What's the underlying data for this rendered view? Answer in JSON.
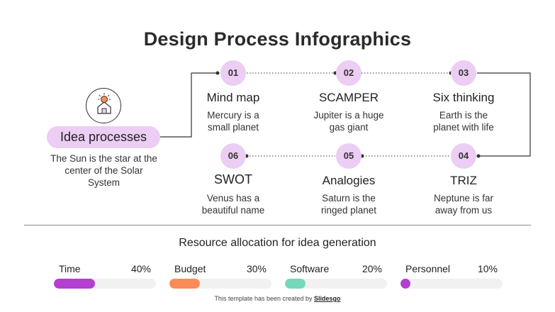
{
  "title": "Design Process Infographics",
  "hub": {
    "label": "Idea processes",
    "description": "The Sun is the star at the center of the Solar System",
    "icon": "idea-house-icon"
  },
  "steps": [
    {
      "number": "01",
      "name": "Mind map",
      "description": "Mercury is a small planet"
    },
    {
      "number": "02",
      "name": "SCAMPER",
      "description": "Jupiter is a huge gas giant"
    },
    {
      "number": "03",
      "name": "Six thinking",
      "description": "Earth is the planet with life"
    },
    {
      "number": "04",
      "name": "TRIZ",
      "description": "Neptune is far away from us"
    },
    {
      "number": "05",
      "name": "Analogies",
      "description": "Saturn is the ringed planet"
    },
    {
      "number": "06",
      "name": "SWOT",
      "description": "Venus has a beautiful name"
    }
  ],
  "resources": {
    "title": "Resource allocation for idea generation",
    "items": [
      {
        "label": "Time",
        "percent_label": "40%",
        "value": 0.4,
        "color": "#b43fd1"
      },
      {
        "label": "Budget",
        "percent_label": "30%",
        "value": 0.3,
        "color": "#fb8b57"
      },
      {
        "label": "Software",
        "percent_label": "20%",
        "value": 0.2,
        "color": "#76d8bb"
      },
      {
        "label": "Personnel",
        "percent_label": "10%",
        "value": 0.1,
        "color": "#b43fd1"
      }
    ]
  },
  "footer": {
    "text": "This template has been created by",
    "brand": "Slidesgo"
  },
  "colors": {
    "accent_pill": "#eccdf3",
    "line": "#333333"
  }
}
